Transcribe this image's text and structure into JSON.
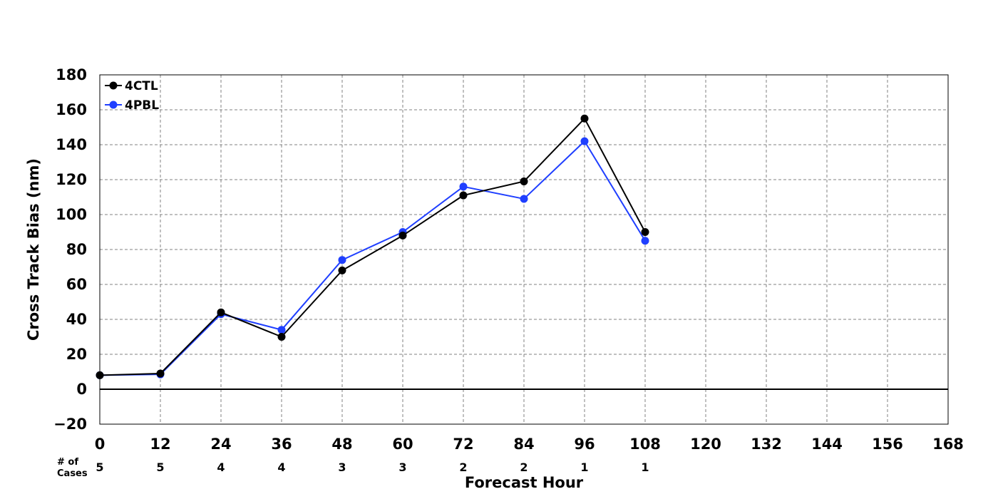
{
  "chart_data": {
    "type": "line",
    "xlabel": "Forecast Hour",
    "ylabel": "Cross Track Bias (nm)",
    "xlim": [
      0,
      168
    ],
    "ylim": [
      -20,
      180
    ],
    "x_ticks": [
      0,
      12,
      24,
      36,
      48,
      60,
      72,
      84,
      96,
      108,
      120,
      132,
      144,
      156,
      168
    ],
    "x_tick_labels": [
      "0",
      "12",
      "24",
      "36",
      "48",
      "60",
      "72",
      "84",
      "96",
      "108",
      "120",
      "132",
      "144",
      "156",
      "168"
    ],
    "y_ticks": [
      -20,
      0,
      20,
      40,
      60,
      80,
      100,
      120,
      140,
      160,
      180
    ],
    "y_tick_labels": [
      "−20",
      "0",
      "20",
      "40",
      "60",
      "80",
      "100",
      "120",
      "140",
      "160",
      "180"
    ],
    "grid": true,
    "legend_position": "top-left",
    "x": [
      0,
      12,
      24,
      36,
      48,
      60,
      72,
      84,
      96,
      108
    ],
    "series": [
      {
        "name": "4CTL",
        "color": "#000000",
        "values": [
          8,
          9,
          44,
          30,
          68,
          88,
          111,
          119,
          155,
          90
        ]
      },
      {
        "name": "4PBL",
        "color": "#1f3fff",
        "values": [
          8,
          8.5,
          43,
          34,
          74,
          90,
          116,
          109,
          142,
          85
        ]
      }
    ],
    "cases": {
      "label_line1": "# of",
      "label_line2": "Cases",
      "x": [
        0,
        12,
        24,
        36,
        48,
        60,
        72,
        84,
        96,
        108
      ],
      "values": [
        "5",
        "5",
        "4",
        "4",
        "3",
        "3",
        "2",
        "2",
        "1",
        "1"
      ]
    }
  }
}
